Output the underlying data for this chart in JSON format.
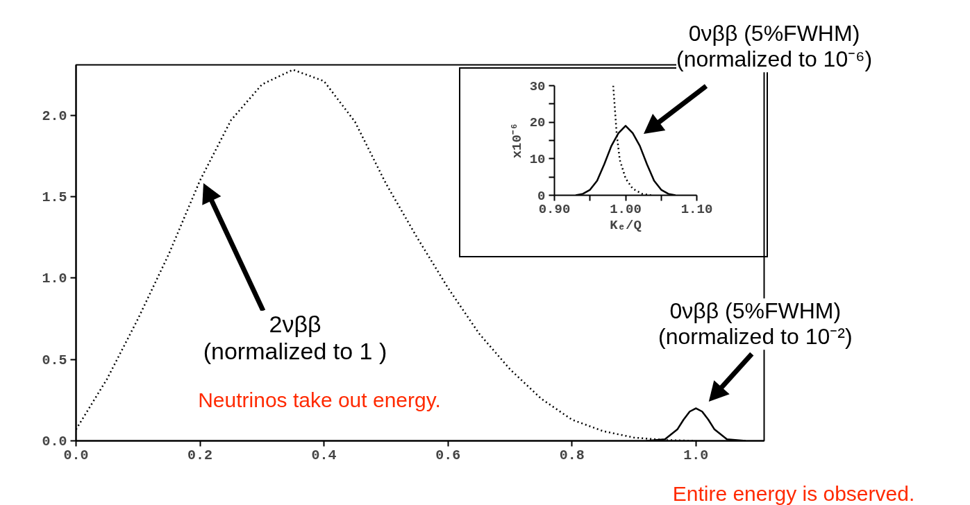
{
  "chart_data": [
    {
      "type": "line",
      "xlim": [
        0,
        1.11
      ],
      "ylim": [
        0,
        2.31
      ],
      "xticks": [
        {
          "value": 0,
          "label": "0.0"
        },
        {
          "value": 0.2,
          "label": "0.2"
        },
        {
          "value": 0.4,
          "label": "0.4"
        },
        {
          "value": 0.6,
          "label": "0.6"
        },
        {
          "value": 0.8,
          "label": "0.8"
        },
        {
          "value": 1.0,
          "label": "1.0"
        }
      ],
      "yticks": [
        {
          "value": 0,
          "label": "0.0"
        },
        {
          "value": 0.5,
          "label": "0.5"
        },
        {
          "value": 1.0,
          "label": "1.0"
        },
        {
          "value": 1.5,
          "label": "1.5"
        },
        {
          "value": 2.0,
          "label": "2.0"
        }
      ],
      "series": [
        {
          "color": "#000000",
          "line_style": "dotted",
          "x": [
            0,
            0.05,
            0.1,
            0.15,
            0.2,
            0.25,
            0.3,
            0.35,
            0.4,
            0.45,
            0.5,
            0.55,
            0.6,
            0.65,
            0.7,
            0.75,
            0.8,
            0.85,
            0.9,
            0.95,
            1.0
          ],
          "values": [
            0.07,
            0.38,
            0.75,
            1.15,
            1.6,
            1.97,
            2.19,
            2.28,
            2.21,
            1.96,
            1.58,
            1.25,
            0.94,
            0.66,
            0.44,
            0.26,
            0.13,
            0.06,
            0.02,
            0.005,
            0
          ]
        },
        {
          "color": "#000000",
          "line_style": "solid",
          "x": [
            0.92,
            0.95,
            0.97,
            0.98,
            0.99,
            1.0,
            1.01,
            1.02,
            1.03,
            1.05,
            1.08
          ],
          "values": [
            0,
            0.01,
            0.07,
            0.13,
            0.18,
            0.2,
            0.18,
            0.13,
            0.07,
            0.01,
            0
          ]
        }
      ],
      "annotations": [
        "2νββ\n(normalized to 1 )",
        "Neutrinos take out energy.",
        {
          "text": "0νββ (5%FWHM)\n(normalized to 10⁻²)",
          "x": 1.0,
          "y": 0.2
        },
        "Entire energy is observed."
      ]
    },
    {
      "type": "line",
      "xlim": [
        0.9,
        1.1
      ],
      "ylim": [
        0,
        30
      ],
      "xlabel": "Kₑ/Q",
      "ylabel": "x10⁻⁶",
      "xticks": [
        {
          "value": 0.9,
          "label": "0.90"
        },
        {
          "value": 0.95,
          "label": null
        },
        {
          "value": 1.0,
          "label": "1.00"
        },
        {
          "value": 1.05,
          "label": null
        },
        {
          "value": 1.1,
          "label": "1.10"
        }
      ],
      "yticks": [
        0,
        {
          "value": 5,
          "label": null
        },
        10,
        {
          "value": 15,
          "label": null
        },
        20,
        {
          "value": 25,
          "label": null
        },
        30
      ],
      "series": [
        {
          "color": "#000000",
          "line_style": "dotted",
          "x": [
            0.9826,
            0.9875,
            0.9918,
            1.0,
            1.01,
            1.023,
            1.036
          ],
          "values": [
            30,
            16.7,
            9.7,
            4.6,
            1.8,
            0.4,
            0
          ]
        },
        {
          "color": "#000000",
          "line_style": "solid",
          "x": [
            0.93,
            0.94,
            0.95,
            0.96,
            0.97,
            0.98,
            0.99,
            1.0,
            1.01,
            1.02,
            1.03,
            1.04,
            1.05,
            1.06,
            1.07
          ],
          "values": [
            0,
            0.4,
            1.5,
            4,
            8.5,
            13.5,
            17,
            19,
            17,
            13.5,
            8.5,
            4,
            1.5,
            0.4,
            0
          ]
        }
      ],
      "annotations": [
        "0νββ (5%FWHM)\n(normalized to 10⁻⁶)"
      ]
    }
  ]
}
